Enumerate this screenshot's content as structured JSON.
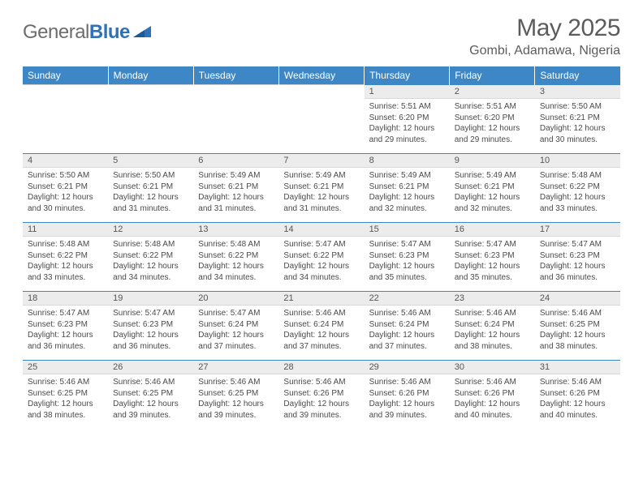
{
  "brand": {
    "part1": "General",
    "part2": "Blue"
  },
  "title": "May 2025",
  "location": "Gombi, Adamawa, Nigeria",
  "colors": {
    "header_bg": "#3d87c7",
    "header_text": "#ffffff",
    "daynum_bg": "#ececec",
    "border_top": "#3d87c7",
    "text": "#4a4a4a",
    "title_text": "#5c5c5c",
    "logo_gray": "#6d6d6d",
    "logo_blue": "#2f72b9"
  },
  "weekdays": [
    "Sunday",
    "Monday",
    "Tuesday",
    "Wednesday",
    "Thursday",
    "Friday",
    "Saturday"
  ],
  "weeks": [
    [
      null,
      null,
      null,
      null,
      {
        "n": "1",
        "sr": "5:51 AM",
        "ss": "6:20 PM",
        "dl": "12 hours and 29 minutes."
      },
      {
        "n": "2",
        "sr": "5:51 AM",
        "ss": "6:20 PM",
        "dl": "12 hours and 29 minutes."
      },
      {
        "n": "3",
        "sr": "5:50 AM",
        "ss": "6:21 PM",
        "dl": "12 hours and 30 minutes."
      }
    ],
    [
      {
        "n": "4",
        "sr": "5:50 AM",
        "ss": "6:21 PM",
        "dl": "12 hours and 30 minutes."
      },
      {
        "n": "5",
        "sr": "5:50 AM",
        "ss": "6:21 PM",
        "dl": "12 hours and 31 minutes."
      },
      {
        "n": "6",
        "sr": "5:49 AM",
        "ss": "6:21 PM",
        "dl": "12 hours and 31 minutes."
      },
      {
        "n": "7",
        "sr": "5:49 AM",
        "ss": "6:21 PM",
        "dl": "12 hours and 31 minutes."
      },
      {
        "n": "8",
        "sr": "5:49 AM",
        "ss": "6:21 PM",
        "dl": "12 hours and 32 minutes."
      },
      {
        "n": "9",
        "sr": "5:49 AM",
        "ss": "6:21 PM",
        "dl": "12 hours and 32 minutes."
      },
      {
        "n": "10",
        "sr": "5:48 AM",
        "ss": "6:22 PM",
        "dl": "12 hours and 33 minutes."
      }
    ],
    [
      {
        "n": "11",
        "sr": "5:48 AM",
        "ss": "6:22 PM",
        "dl": "12 hours and 33 minutes."
      },
      {
        "n": "12",
        "sr": "5:48 AM",
        "ss": "6:22 PM",
        "dl": "12 hours and 34 minutes."
      },
      {
        "n": "13",
        "sr": "5:48 AM",
        "ss": "6:22 PM",
        "dl": "12 hours and 34 minutes."
      },
      {
        "n": "14",
        "sr": "5:47 AM",
        "ss": "6:22 PM",
        "dl": "12 hours and 34 minutes."
      },
      {
        "n": "15",
        "sr": "5:47 AM",
        "ss": "6:23 PM",
        "dl": "12 hours and 35 minutes."
      },
      {
        "n": "16",
        "sr": "5:47 AM",
        "ss": "6:23 PM",
        "dl": "12 hours and 35 minutes."
      },
      {
        "n": "17",
        "sr": "5:47 AM",
        "ss": "6:23 PM",
        "dl": "12 hours and 36 minutes."
      }
    ],
    [
      {
        "n": "18",
        "sr": "5:47 AM",
        "ss": "6:23 PM",
        "dl": "12 hours and 36 minutes."
      },
      {
        "n": "19",
        "sr": "5:47 AM",
        "ss": "6:23 PM",
        "dl": "12 hours and 36 minutes."
      },
      {
        "n": "20",
        "sr": "5:47 AM",
        "ss": "6:24 PM",
        "dl": "12 hours and 37 minutes."
      },
      {
        "n": "21",
        "sr": "5:46 AM",
        "ss": "6:24 PM",
        "dl": "12 hours and 37 minutes."
      },
      {
        "n": "22",
        "sr": "5:46 AM",
        "ss": "6:24 PM",
        "dl": "12 hours and 37 minutes."
      },
      {
        "n": "23",
        "sr": "5:46 AM",
        "ss": "6:24 PM",
        "dl": "12 hours and 38 minutes."
      },
      {
        "n": "24",
        "sr": "5:46 AM",
        "ss": "6:25 PM",
        "dl": "12 hours and 38 minutes."
      }
    ],
    [
      {
        "n": "25",
        "sr": "5:46 AM",
        "ss": "6:25 PM",
        "dl": "12 hours and 38 minutes."
      },
      {
        "n": "26",
        "sr": "5:46 AM",
        "ss": "6:25 PM",
        "dl": "12 hours and 39 minutes."
      },
      {
        "n": "27",
        "sr": "5:46 AM",
        "ss": "6:25 PM",
        "dl": "12 hours and 39 minutes."
      },
      {
        "n": "28",
        "sr": "5:46 AM",
        "ss": "6:26 PM",
        "dl": "12 hours and 39 minutes."
      },
      {
        "n": "29",
        "sr": "5:46 AM",
        "ss": "6:26 PM",
        "dl": "12 hours and 39 minutes."
      },
      {
        "n": "30",
        "sr": "5:46 AM",
        "ss": "6:26 PM",
        "dl": "12 hours and 40 minutes."
      },
      {
        "n": "31",
        "sr": "5:46 AM",
        "ss": "6:26 PM",
        "dl": "12 hours and 40 minutes."
      }
    ]
  ],
  "labels": {
    "sunrise": "Sunrise:",
    "sunset": "Sunset:",
    "daylight": "Daylight:"
  }
}
